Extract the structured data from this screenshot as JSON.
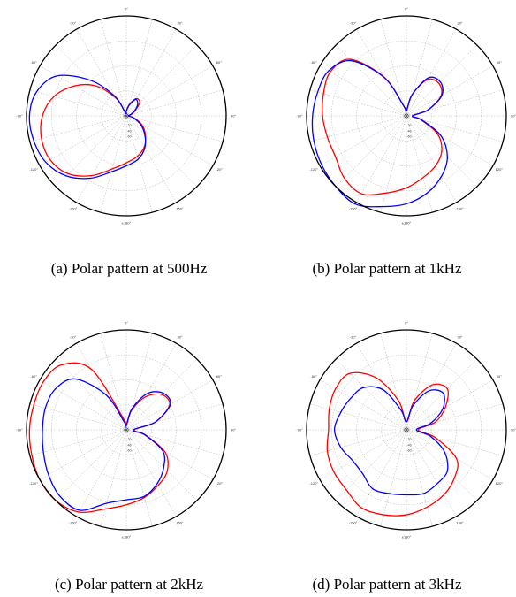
{
  "captions": [
    "(a) Polar pattern at 500Hz",
    "(b) Polar pattern at 1kHz",
    "(c) Polar pattern at 2kHz",
    "(d) Polar pattern at 3kHz"
  ],
  "colors": {
    "series1": "#ff0000",
    "series2": "#0000ff",
    "grid": "#b0b0b0"
  },
  "chart_data": [
    {
      "type": "polar",
      "caption": "(a) Polar pattern at 500Hz",
      "angle_labels": [
        "0°",
        "30°",
        "60°",
        "90°",
        "120°",
        "150°",
        "±180°",
        "-150°",
        "-120°",
        "-90°",
        "-60°",
        "-30°"
      ],
      "radial_labels": [
        "-20",
        "-40",
        "-60"
      ],
      "angles_deg": [
        0,
        15,
        30,
        45,
        60,
        75,
        90,
        105,
        120,
        135,
        150,
        165,
        180,
        195,
        210,
        225,
        240,
        255,
        270,
        285,
        300,
        315,
        330,
        345
      ],
      "series": [
        {
          "color": "#ff0000",
          "values": [
            0.05,
            0.12,
            0.2,
            0.19,
            0.1,
            0.05,
            0.02,
            0.08,
            0.18,
            0.27,
            0.36,
            0.42,
            0.47,
            0.55,
            0.69,
            0.82,
            0.88,
            0.88,
            0.84,
            0.75,
            0.6,
            0.42,
            0.2,
            0.03
          ]
        },
        {
          "color": "#0000ff",
          "values": [
            0.05,
            0.11,
            0.19,
            0.16,
            0.09,
            0.04,
            0.02,
            0.07,
            0.16,
            0.26,
            0.37,
            0.45,
            0.5,
            0.58,
            0.72,
            0.85,
            0.93,
            0.96,
            0.97,
            0.93,
            0.8,
            0.5,
            0.22,
            0.03
          ]
        }
      ]
    },
    {
      "type": "polar",
      "caption": "(b) Polar pattern at 1kHz",
      "angle_labels": [
        "0°",
        "30°",
        "60°",
        "90°",
        "120°",
        "150°",
        "±180°",
        "-150°",
        "-120°",
        "-90°",
        "-60°",
        "-30°"
      ],
      "radial_labels": [
        "-20",
        "-40",
        "-60"
      ],
      "angles_deg": [
        0,
        15,
        30,
        45,
        60,
        75,
        90,
        105,
        120,
        135,
        150,
        165,
        180,
        195,
        210,
        225,
        240,
        255,
        270,
        285,
        300,
        315,
        330,
        345
      ],
      "series": [
        {
          "color": "#ff0000",
          "values": [
            0.05,
            0.22,
            0.42,
            0.46,
            0.4,
            0.22,
            0.06,
            0.15,
            0.36,
            0.5,
            0.58,
            0.64,
            0.72,
            0.8,
            0.9,
            0.88,
            0.82,
            0.82,
            0.84,
            0.86,
            0.88,
            0.8,
            0.45,
            0.1
          ]
        },
        {
          "color": "#0000ff",
          "values": [
            0.05,
            0.22,
            0.44,
            0.48,
            0.41,
            0.22,
            0.06,
            0.16,
            0.4,
            0.58,
            0.7,
            0.8,
            0.88,
            0.94,
            1.02,
            1.0,
            0.98,
            0.96,
            0.94,
            0.92,
            0.9,
            0.78,
            0.44,
            0.1
          ]
        }
      ]
    },
    {
      "type": "polar",
      "caption": "(c) Polar pattern at 2kHz",
      "angle_labels": [
        "0°",
        "30°",
        "60°",
        "90°",
        "120°",
        "150°",
        "±180°",
        "-150°",
        "-120°",
        "-90°",
        "-60°",
        "-30°"
      ],
      "radial_labels": [
        "-20",
        "-40",
        "-60"
      ],
      "angles_deg": [
        0,
        15,
        30,
        45,
        60,
        75,
        90,
        105,
        120,
        135,
        150,
        165,
        180,
        195,
        210,
        225,
        240,
        255,
        270,
        285,
        300,
        315,
        330,
        345
      ],
      "series": [
        {
          "color": "#ff0000",
          "values": [
            0.05,
            0.2,
            0.38,
            0.5,
            0.5,
            0.3,
            0.08,
            0.2,
            0.45,
            0.58,
            0.64,
            0.7,
            0.75,
            0.82,
            0.95,
            1.0,
            1.0,
            0.98,
            0.97,
            0.96,
            0.96,
            0.92,
            0.7,
            0.12
          ]
        },
        {
          "color": "#0000ff",
          "values": [
            0.05,
            0.22,
            0.42,
            0.52,
            0.51,
            0.3,
            0.07,
            0.19,
            0.42,
            0.53,
            0.62,
            0.69,
            0.7,
            0.76,
            0.93,
            0.94,
            0.9,
            0.86,
            0.84,
            0.84,
            0.82,
            0.72,
            0.4,
            0.08
          ]
        }
      ]
    },
    {
      "type": "polar",
      "caption": "(d) Polar pattern at 3kHz",
      "angle_labels": [
        "0°",
        "30°",
        "60°",
        "90°",
        "120°",
        "150°",
        "±180°",
        "-150°",
        "-120°",
        "-90°",
        "-60°",
        "-30°"
      ],
      "radial_labels": [
        "-20",
        "-40",
        "-60"
      ],
      "angles_deg": [
        0,
        15,
        30,
        45,
        60,
        75,
        90,
        105,
        120,
        135,
        150,
        165,
        180,
        195,
        210,
        225,
        240,
        255,
        270,
        285,
        300,
        315,
        330,
        345
      ],
      "series": [
        {
          "color": "#ff0000",
          "values": [
            0.08,
            0.3,
            0.52,
            0.58,
            0.45,
            0.3,
            0.12,
            0.3,
            0.58,
            0.68,
            0.75,
            0.8,
            0.85,
            0.88,
            0.9,
            0.85,
            0.84,
            0.82,
            0.78,
            0.8,
            0.82,
            0.8,
            0.6,
            0.3
          ]
        },
        {
          "color": "#0000ff",
          "values": [
            0.08,
            0.25,
            0.45,
            0.52,
            0.42,
            0.25,
            0.1,
            0.25,
            0.44,
            0.58,
            0.62,
            0.66,
            0.65,
            0.66,
            0.68,
            0.62,
            0.62,
            0.68,
            0.72,
            0.68,
            0.64,
            0.6,
            0.46,
            0.2
          ]
        }
      ]
    }
  ]
}
